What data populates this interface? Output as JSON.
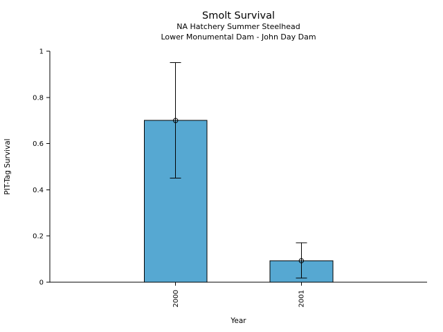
{
  "chart_data": {
    "type": "bar",
    "title": "Smolt Survival",
    "subtitles": [
      "NA Hatchery Summer Steelhead",
      "Lower Monumental Dam - John Day Dam"
    ],
    "xlabel": "Year",
    "ylabel": "PIT-Tag Survival",
    "categories": [
      "2000",
      "2001"
    ],
    "series": [
      {
        "name": "PIT-Tag Survival",
        "values": [
          0.7,
          0.093
        ]
      }
    ],
    "error_bars": {
      "lower": [
        0.45,
        0.018
      ],
      "upper": [
        0.95,
        0.17
      ]
    },
    "ylim": [
      0,
      1
    ],
    "yticks": [
      0,
      0.2,
      0.4,
      0.6,
      0.8,
      1
    ],
    "ytick_labels": [
      "0",
      "0.2",
      "0.4",
      "0.6",
      "0.8",
      "1"
    ],
    "xtick_label_rotation": -90,
    "grid": false,
    "legend": false,
    "marker": "open-circle",
    "bar_color": "#56a8d2",
    "bar_edge_color": "#000000",
    "error_bar_color": "#000000",
    "axis_color": "#000000",
    "text_color": "#000000",
    "background": "#ffffff"
  }
}
